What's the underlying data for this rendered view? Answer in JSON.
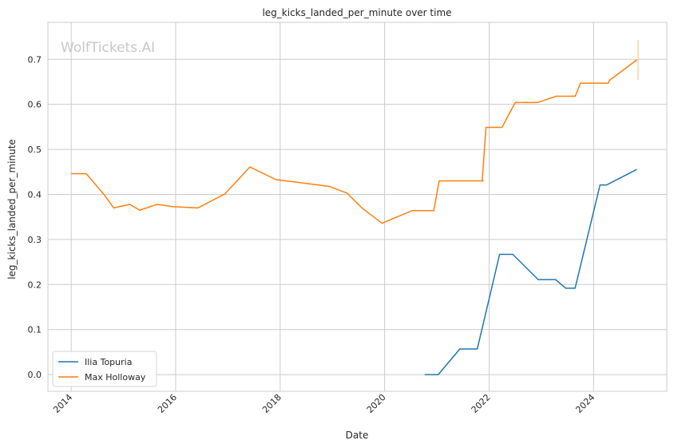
{
  "watermark": "WolfTickets.AI",
  "chart_data": {
    "type": "line",
    "title": "leg_kicks_landed_per_minute over time",
    "xlabel": "Date",
    "ylabel": "leg_kicks_landed_per_minute",
    "x_ticks": [
      "2014",
      "2016",
      "2018",
      "2020",
      "2022",
      "2024"
    ],
    "y_ticks": [
      "0.0",
      "0.1",
      "0.2",
      "0.3",
      "0.4",
      "0.5",
      "0.6",
      "0.7"
    ],
    "xlim": [
      "2013-07-22",
      "2025-05-27"
    ],
    "ylim": [
      -0.037,
      0.782
    ],
    "grid": true,
    "legend_position": "lower-left",
    "series": [
      {
        "name": "Ilia Topuria",
        "color": "#1f77b4",
        "points": [
          [
            "2020-10-10",
            0.0
          ],
          [
            "2021-01-10",
            0.0
          ],
          [
            "2021-06-10",
            0.057
          ],
          [
            "2021-10-10",
            0.057
          ],
          [
            "2022-03-15",
            0.267
          ],
          [
            "2022-06-15",
            0.267
          ],
          [
            "2022-12-10",
            0.211
          ],
          [
            "2023-04-10",
            0.211
          ],
          [
            "2023-06-20",
            0.192
          ],
          [
            "2023-08-25",
            0.192
          ],
          [
            "2024-02-15",
            0.421
          ],
          [
            "2024-04-01",
            0.421
          ],
          [
            "2024-10-26",
            0.455
          ]
        ]
      },
      {
        "name": "Max Holloway",
        "color": "#ff7f0e",
        "points": [
          [
            "2014-01-04",
            0.446
          ],
          [
            "2014-04-16",
            0.446
          ],
          [
            "2014-08-23",
            0.398
          ],
          [
            "2014-10-25",
            0.37
          ],
          [
            "2015-02-14",
            0.378
          ],
          [
            "2015-04-25",
            0.365
          ],
          [
            "2015-08-23",
            0.378
          ],
          [
            "2015-12-12",
            0.373
          ],
          [
            "2016-06-04",
            0.37
          ],
          [
            "2016-12-10",
            0.401
          ],
          [
            "2017-06-03",
            0.461
          ],
          [
            "2017-12-02",
            0.433
          ],
          [
            "2018-12-08",
            0.418
          ],
          [
            "2019-04-13",
            0.403
          ],
          [
            "2019-07-27",
            0.37
          ],
          [
            "2019-12-14",
            0.336
          ],
          [
            "2020-07-11",
            0.364
          ],
          [
            "2020-12-10",
            0.364
          ],
          [
            "2021-01-16",
            0.43
          ],
          [
            "2021-11-13",
            0.43
          ],
          [
            "2021-11-13",
            0.43
          ],
          [
            "2021-11-20",
            0.43
          ],
          [
            "2021-11-13",
            0.43
          ],
          [
            "2021-12-10",
            0.549
          ],
          [
            "2022-04-01",
            0.549
          ],
          [
            "2022-07-02",
            0.604
          ],
          [
            "2022-12-05",
            0.604
          ],
          [
            "2023-04-15",
            0.618
          ],
          [
            "2023-08-26",
            0.618
          ],
          [
            "2023-10-01",
            0.647
          ],
          [
            "2024-01-15",
            0.647
          ],
          [
            "2024-04-13",
            0.647
          ],
          [
            "2024-04-20",
            0.653
          ],
          [
            "2024-10-26",
            0.698
          ]
        ]
      }
    ]
  }
}
